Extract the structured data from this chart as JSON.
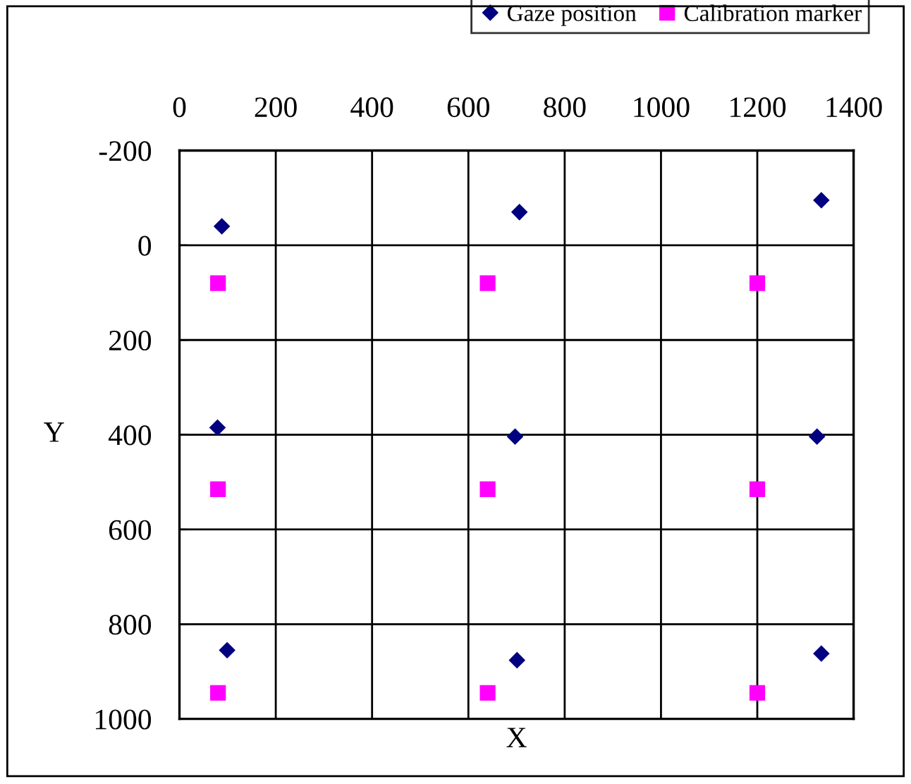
{
  "chart_data": {
    "type": "scatter",
    "xlabel": "X",
    "ylabel": "Y",
    "xlim": [
      0,
      1400
    ],
    "xticks": [
      0,
      200,
      400,
      600,
      800,
      1000,
      1200,
      1400
    ],
    "ylim": [
      1000,
      -200
    ],
    "yticks": [
      -200,
      0,
      200,
      400,
      600,
      800,
      1000
    ],
    "grid": true,
    "legend": "top right",
    "series": [
      {
        "name": "Gaze position",
        "color": "#000080",
        "marker": "diamond",
        "x": [
          88,
          706,
          1333,
          79,
          697,
          1324,
          99,
          701,
          1333
        ],
        "values": [
          -40,
          -70,
          -95,
          385,
          404,
          404,
          855,
          876,
          862
        ]
      },
      {
        "name": "Calibration marker",
        "color": "#ff00ff",
        "marker": "square",
        "x": [
          80,
          640,
          1200,
          80,
          640,
          1200,
          80,
          640,
          1200
        ],
        "values": [
          80,
          80,
          80,
          515,
          515,
          515,
          945,
          945,
          945
        ]
      }
    ]
  }
}
